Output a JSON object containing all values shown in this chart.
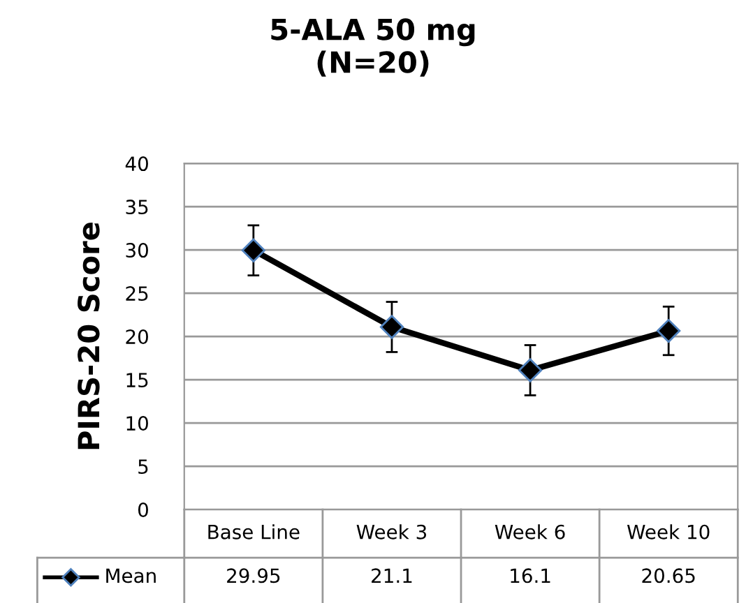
{
  "chart_data": {
    "type": "line",
    "title": "5-ALA 50 mg\n(N=20)",
    "ylabel": "PIRS-20 Score",
    "categories": [
      "Base Line",
      "Week 3",
      "Week 6",
      "Week 10"
    ],
    "series": [
      {
        "name": "Mean",
        "color": "#000000",
        "values": [
          29.95,
          21.1,
          16.1,
          20.65
        ],
        "errors": [
          2.9,
          2.9,
          2.9,
          2.8
        ]
      }
    ],
    "ylim": [
      0,
      40
    ],
    "yticks": [
      0,
      5,
      10,
      15,
      20,
      25,
      30,
      35,
      40
    ],
    "grid": "y",
    "marker": "diamond",
    "line_style": "solid",
    "data_labels": true,
    "legend": "bottom"
  }
}
